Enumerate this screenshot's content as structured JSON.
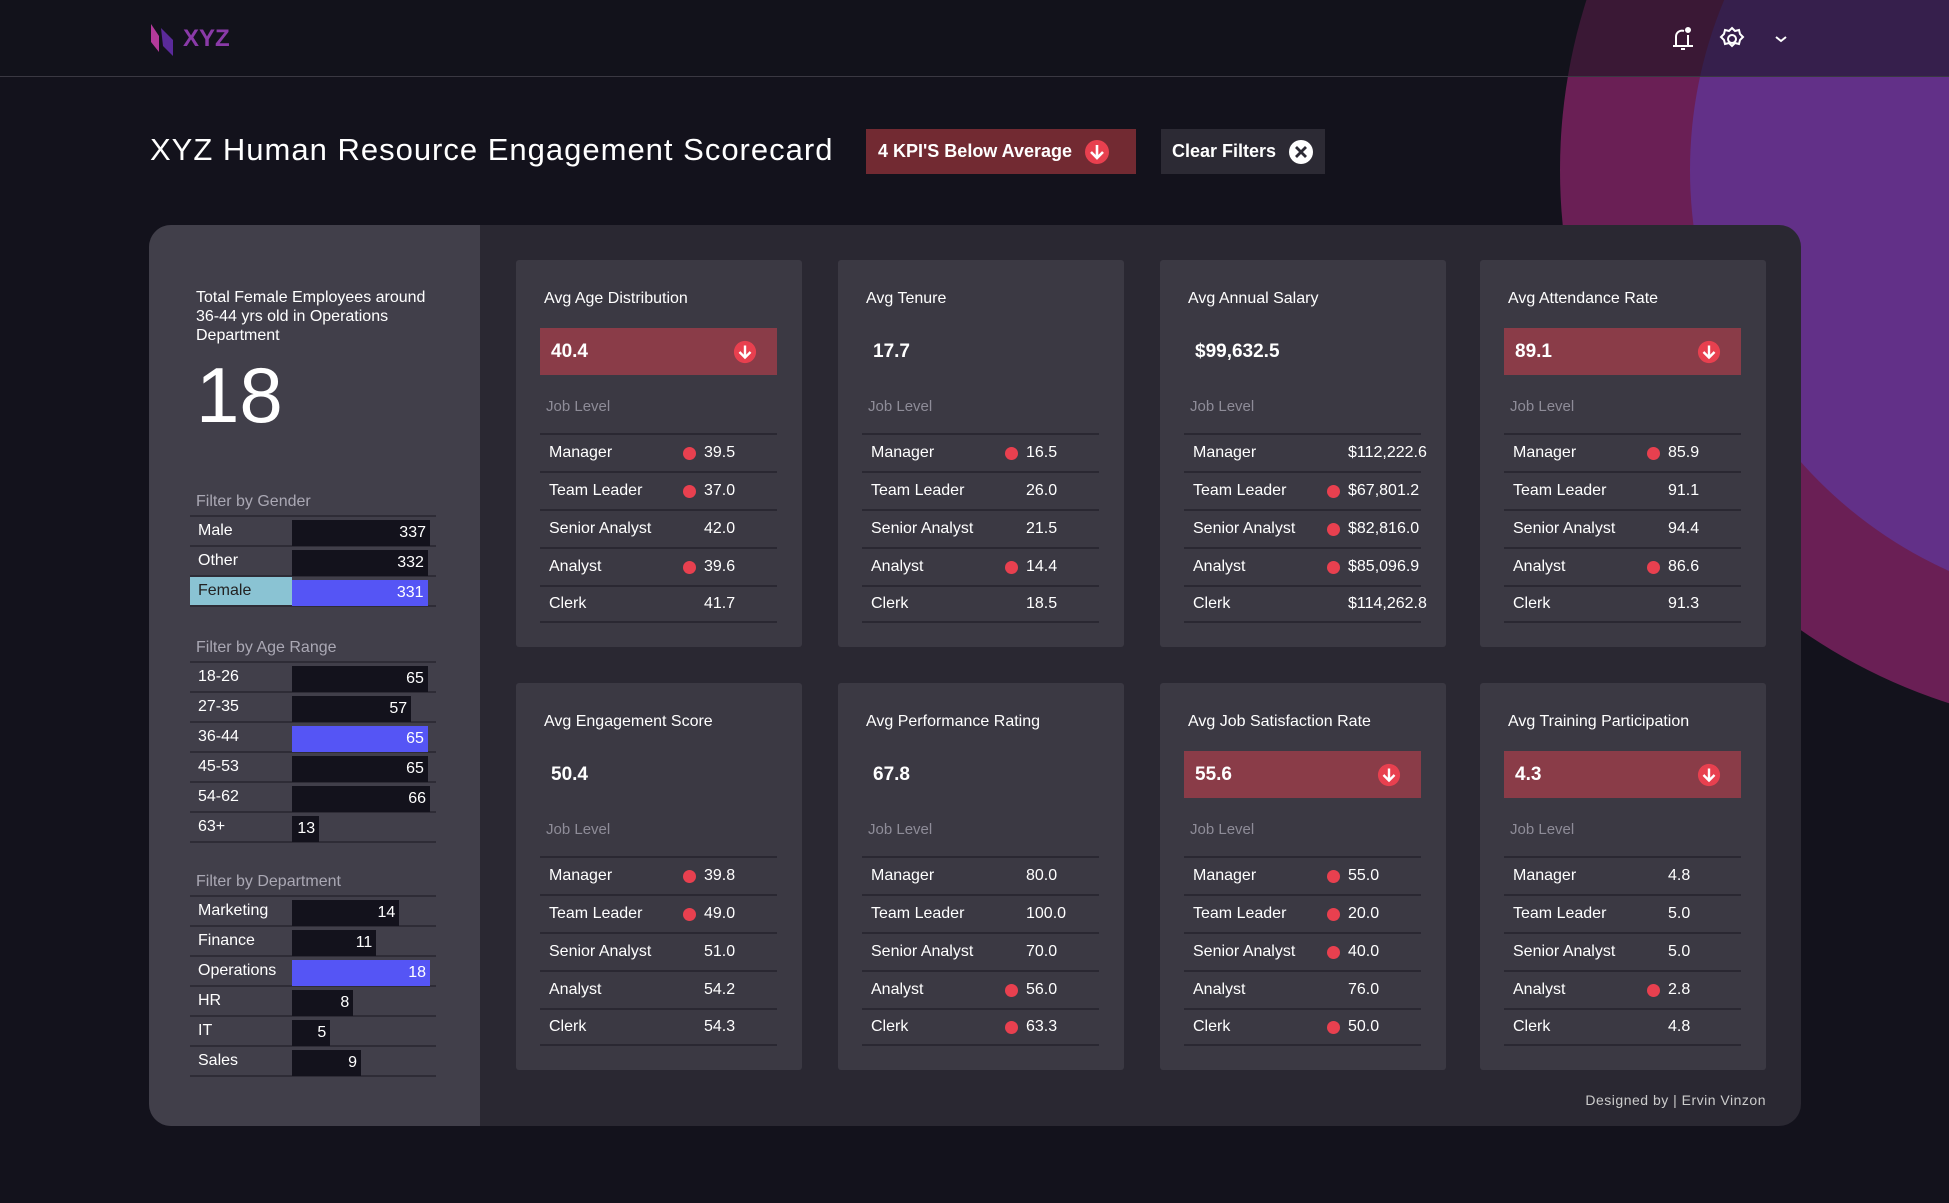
{
  "header": {
    "logo_text": "XYZ",
    "icons": [
      "bell-icon",
      "gear-icon",
      "chevron-down-icon"
    ]
  },
  "title": "XYZ Human Resource Engagement Scorecard",
  "kpi_button": "4 KPI'S Below Average",
  "clear_button": "Clear Filters",
  "colors": {
    "below": "#8a3c48",
    "dot": "#e8404f",
    "highlight": "#5555f5",
    "selected_label": "#8ac3d3"
  },
  "summary": {
    "text": "Total Female Employees around 36-44 yrs old in Operations Department",
    "value": "18"
  },
  "filters": [
    {
      "label": "Filter by Gender",
      "items": [
        {
          "name": "Male",
          "value": 337
        },
        {
          "name": "Other",
          "value": 332
        },
        {
          "name": "Female",
          "value": 331,
          "selected": true
        }
      ]
    },
    {
      "label": "Filter by Age Range",
      "items": [
        {
          "name": "18-26",
          "value": 65
        },
        {
          "name": "27-35",
          "value": 57
        },
        {
          "name": "36-44",
          "value": 65,
          "highlight": true
        },
        {
          "name": "45-53",
          "value": 65
        },
        {
          "name": "54-62",
          "value": 66
        },
        {
          "name": "63+",
          "value": 13
        }
      ]
    },
    {
      "label": "Filter by Department",
      "items": [
        {
          "name": "Marketing",
          "value": 14
        },
        {
          "name": "Finance",
          "value": 11
        },
        {
          "name": "Operations",
          "value": 18,
          "highlight": true
        },
        {
          "name": "HR",
          "value": 8
        },
        {
          "name": "IT",
          "value": 5
        },
        {
          "name": "Sales",
          "value": 9
        }
      ]
    }
  ],
  "job_level_label": "Job Level",
  "cards": [
    {
      "title": "Avg Age Distribution",
      "value": "40.4",
      "below": true,
      "rows": [
        {
          "l": "Manager",
          "v": "39.5",
          "d": true
        },
        {
          "l": "Team Leader",
          "v": "37.0",
          "d": true
        },
        {
          "l": "Senior Analyst",
          "v": "42.0"
        },
        {
          "l": "Analyst",
          "v": "39.6",
          "d": true
        },
        {
          "l": "Clerk",
          "v": "41.7"
        }
      ]
    },
    {
      "title": "Avg Tenure",
      "value": "17.7",
      "rows": [
        {
          "l": "Manager",
          "v": "16.5",
          "d": true
        },
        {
          "l": "Team Leader",
          "v": "26.0"
        },
        {
          "l": "Senior Analyst",
          "v": "21.5"
        },
        {
          "l": "Analyst",
          "v": "14.4",
          "d": true
        },
        {
          "l": "Clerk",
          "v": "18.5"
        }
      ]
    },
    {
      "title": "Avg Annual Salary",
      "value": "$99,632.5",
      "rows": [
        {
          "l": "Manager",
          "v": "$112,222.6"
        },
        {
          "l": "Team Leader",
          "v": "$67,801.2",
          "d": true
        },
        {
          "l": "Senior Analyst",
          "v": "$82,816.0",
          "d": true
        },
        {
          "l": "Analyst",
          "v": "$85,096.9",
          "d": true
        },
        {
          "l": "Clerk",
          "v": "$114,262.8"
        }
      ]
    },
    {
      "title": "Avg Attendance Rate",
      "value": "89.1",
      "below": true,
      "rows": [
        {
          "l": "Manager",
          "v": "85.9",
          "d": true
        },
        {
          "l": "Team Leader",
          "v": "91.1"
        },
        {
          "l": "Senior Analyst",
          "v": "94.4"
        },
        {
          "l": "Analyst",
          "v": "86.6",
          "d": true
        },
        {
          "l": "Clerk",
          "v": "91.3"
        }
      ]
    },
    {
      "title": "Avg Engagement Score",
      "value": "50.4",
      "rows": [
        {
          "l": "Manager",
          "v": "39.8",
          "d": true
        },
        {
          "l": "Team Leader",
          "v": "49.0",
          "d": true
        },
        {
          "l": "Senior Analyst",
          "v": "51.0"
        },
        {
          "l": "Analyst",
          "v": "54.2"
        },
        {
          "l": "Clerk",
          "v": "54.3"
        }
      ]
    },
    {
      "title": "Avg Performance Rating",
      "value": "67.8",
      "rows": [
        {
          "l": "Manager",
          "v": "80.0"
        },
        {
          "l": "Team Leader",
          "v": "100.0"
        },
        {
          "l": "Senior Analyst",
          "v": "70.0"
        },
        {
          "l": "Analyst",
          "v": "56.0",
          "d": true
        },
        {
          "l": "Clerk",
          "v": "63.3",
          "d": true
        }
      ]
    },
    {
      "title": "Avg Job Satisfaction Rate",
      "value": "55.6",
      "below": true,
      "rows": [
        {
          "l": "Manager",
          "v": "55.0",
          "d": true
        },
        {
          "l": "Team Leader",
          "v": "20.0",
          "d": true
        },
        {
          "l": "Senior Analyst",
          "v": "40.0",
          "d": true
        },
        {
          "l": "Analyst",
          "v": "76.0"
        },
        {
          "l": "Clerk",
          "v": "50.0",
          "d": true
        }
      ]
    },
    {
      "title": "Avg Training Participation",
      "value": "4.3",
      "below": true,
      "rows": [
        {
          "l": "Manager",
          "v": "4.8"
        },
        {
          "l": "Team Leader",
          "v": "5.0"
        },
        {
          "l": "Senior Analyst",
          "v": "5.0"
        },
        {
          "l": "Analyst",
          "v": "2.8",
          "d": true
        },
        {
          "l": "Clerk",
          "v": "4.8"
        }
      ]
    }
  ],
  "footer": "Designed by | Ervin Vinzon"
}
